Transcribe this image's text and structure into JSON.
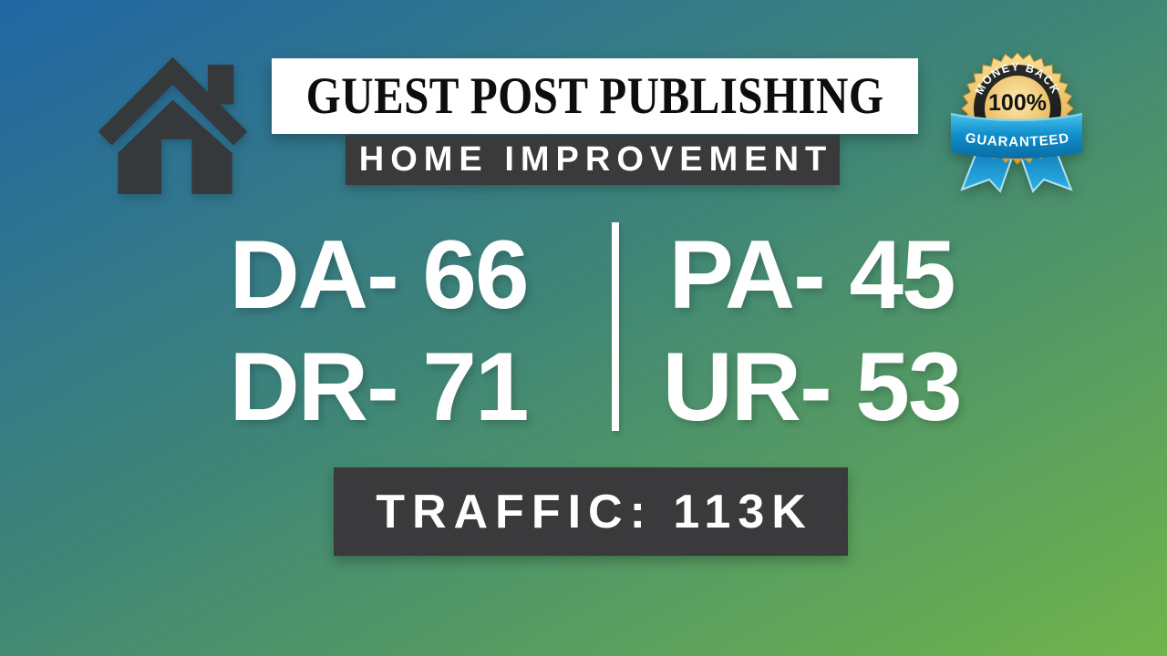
{
  "banner": {
    "title": "GUEST POST PUBLISHING",
    "category": "HOME IMPROVEMENT"
  },
  "metrics": {
    "left": [
      "DA- 66",
      "DR- 71"
    ],
    "right": [
      "PA- 45",
      "UR- 53"
    ]
  },
  "traffic": {
    "text": "TRAFFIC: 113K"
  },
  "badge": {
    "arc_text": "MONEY BACK",
    "percent": "100%",
    "ribbon_text": "GUARANTEED"
  },
  "colors": {
    "bg_gradient_start": "#2166a4",
    "bg_gradient_mid": "#3f8577",
    "bg_gradient_end": "#70b44b",
    "dark_box": "#3a3a3c",
    "banner_bg": "#ffffff",
    "title_text": "#0d0d0d",
    "metric_text": "#ffffff",
    "house_icon": "#35393b",
    "badge_gold": "#e9b84e",
    "badge_ring": "#1e1e1c",
    "ribbon_blue": "#1293d2"
  }
}
